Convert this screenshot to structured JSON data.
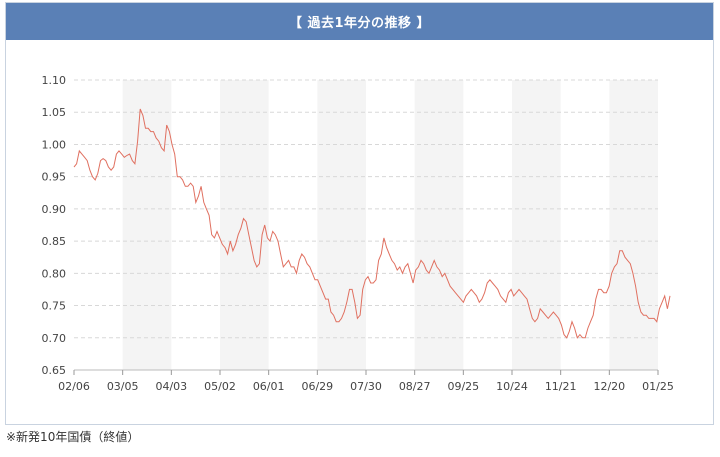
{
  "header": {
    "title": "【 過去1年分の推移 】"
  },
  "footnote": "※新発10年国債（終値）",
  "colors": {
    "header_bg": "#5a80b6",
    "line": "#e07060",
    "band": "#f4f4f4",
    "grid": "#d8d8d8"
  },
  "chart_data": {
    "type": "line",
    "title": "",
    "xlabel": "",
    "ylabel": "",
    "ylim": [
      0.65,
      1.1
    ],
    "yticks": [
      "1.10",
      "1.05",
      "1.00",
      "0.95",
      "0.90",
      "0.85",
      "0.80",
      "0.75",
      "0.70",
      "0.65"
    ],
    "xticks": [
      "02/06",
      "03/05",
      "04/03",
      "05/02",
      "06/01",
      "06/29",
      "07/30",
      "08/27",
      "09/25",
      "10/24",
      "11/21",
      "12/20",
      "01/25"
    ],
    "grid": true,
    "legend": "none",
    "series": [
      {
        "values": [
          0.965,
          0.97,
          0.99,
          0.985,
          0.98,
          0.975,
          0.96,
          0.95,
          0.945,
          0.955,
          0.975,
          0.978,
          0.975,
          0.965,
          0.96,
          0.965,
          0.985,
          0.99,
          0.985,
          0.98,
          0.983,
          0.985,
          0.975,
          0.97,
          1.005,
          1.055,
          1.045,
          1.025,
          1.025,
          1.02,
          1.02,
          1.01,
          1.005,
          0.995,
          0.99,
          1.03,
          1.02,
          1.0,
          0.985,
          0.95,
          0.95,
          0.945,
          0.935,
          0.935,
          0.94,
          0.935,
          0.91,
          0.92,
          0.935,
          0.91,
          0.9,
          0.89,
          0.86,
          0.855,
          0.865,
          0.855,
          0.845,
          0.84,
          0.83,
          0.85,
          0.835,
          0.845,
          0.86,
          0.87,
          0.885,
          0.88,
          0.86,
          0.84,
          0.82,
          0.81,
          0.815,
          0.86,
          0.875,
          0.855,
          0.85,
          0.865,
          0.86,
          0.85,
          0.83,
          0.81,
          0.815,
          0.82,
          0.81,
          0.81,
          0.8,
          0.82,
          0.83,
          0.825,
          0.815,
          0.81,
          0.8,
          0.79,
          0.79,
          0.78,
          0.77,
          0.76,
          0.76,
          0.74,
          0.735,
          0.725,
          0.725,
          0.73,
          0.74,
          0.755,
          0.775,
          0.775,
          0.755,
          0.73,
          0.735,
          0.775,
          0.79,
          0.795,
          0.785,
          0.785,
          0.79,
          0.82,
          0.83,
          0.855,
          0.84,
          0.83,
          0.82,
          0.815,
          0.805,
          0.81,
          0.8,
          0.81,
          0.815,
          0.8,
          0.785,
          0.805,
          0.81,
          0.82,
          0.815,
          0.805,
          0.8,
          0.81,
          0.82,
          0.81,
          0.805,
          0.795,
          0.8,
          0.79,
          0.78,
          0.775,
          0.77,
          0.765,
          0.76,
          0.755,
          0.765,
          0.77,
          0.775,
          0.77,
          0.765,
          0.755,
          0.76,
          0.77,
          0.785,
          0.79,
          0.785,
          0.78,
          0.775,
          0.765,
          0.76,
          0.755,
          0.77,
          0.775,
          0.765,
          0.77,
          0.775,
          0.77,
          0.765,
          0.76,
          0.745,
          0.73,
          0.725,
          0.73,
          0.745,
          0.74,
          0.735,
          0.73,
          0.735,
          0.74,
          0.735,
          0.73,
          0.72,
          0.705,
          0.7,
          0.71,
          0.725,
          0.715,
          0.7,
          0.705,
          0.7,
          0.7,
          0.715,
          0.725,
          0.735,
          0.76,
          0.775,
          0.775,
          0.77,
          0.77,
          0.78,
          0.8,
          0.81,
          0.815,
          0.835,
          0.835,
          0.825,
          0.82,
          0.815,
          0.8,
          0.78,
          0.755,
          0.74,
          0.735,
          0.735,
          0.73,
          0.73,
          0.73,
          0.725,
          0.745,
          0.755,
          0.765,
          0.745,
          0.765
        ]
      }
    ]
  }
}
